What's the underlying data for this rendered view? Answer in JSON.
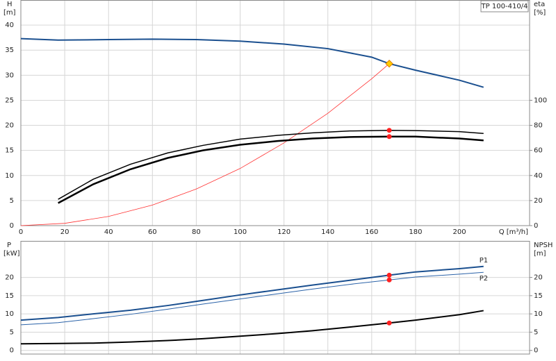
{
  "chart_data": [
    {
      "type": "line",
      "ylabel": "H",
      "yunit": "[m]",
      "y2label": "eta",
      "y2unit": "[%]",
      "xlabel": "Q [m³/h]",
      "legend_title": "TP 100-410/4",
      "xlim": [
        0,
        232
      ],
      "xticks": [
        0,
        20,
        40,
        60,
        80,
        100,
        120,
        140,
        160,
        180,
        200
      ],
      "ylim": [
        0,
        45
      ],
      "yticks": [
        0,
        5,
        10,
        15,
        20,
        25,
        30,
        35,
        40
      ],
      "y2lim": [
        0,
        180
      ],
      "y2ticks": [
        0,
        20,
        40,
        60,
        80,
        100
      ],
      "grid": true,
      "series": [
        {
          "color": "#1a4f8f",
          "width": 2,
          "x": [
            0,
            17,
            40,
            60,
            80,
            100,
            120,
            140,
            160,
            168,
            180,
            200,
            211
          ],
          "values": [
            37.3,
            37.0,
            37.1,
            37.2,
            37.1,
            36.8,
            36.2,
            35.3,
            33.6,
            32.3,
            31.0,
            29.0,
            27.6
          ]
        },
        {
          "color": "#ff3030",
          "width": 0.8,
          "x": [
            0,
            20,
            40,
            60,
            80,
            100,
            120,
            140,
            160,
            168
          ],
          "values": [
            0,
            0.46,
            1.83,
            4.1,
            7.3,
            11.4,
            16.5,
            22.4,
            29.3,
            32.3
          ]
        },
        {
          "color": "#000000",
          "width": 1.5,
          "axis": "y2",
          "x": [
            17,
            33,
            50,
            67,
            83,
            100,
            117,
            133,
            150,
            168,
            180,
            200,
            211
          ],
          "values": [
            21,
            37,
            49,
            58,
            64,
            69,
            72,
            74,
            75.5,
            76,
            75.8,
            75,
            73.5
          ]
        },
        {
          "color": "#000000",
          "width": 2.5,
          "axis": "y2",
          "x": [
            17,
            33,
            50,
            67,
            83,
            100,
            117,
            133,
            150,
            168,
            180,
            200,
            211
          ],
          "values": [
            18,
            33,
            45,
            54,
            60,
            64.5,
            67.5,
            69.5,
            70.7,
            71,
            71,
            69.5,
            68
          ]
        }
      ],
      "markers": [
        {
          "x": 168,
          "y": 76,
          "axis": "y2",
          "shape": "circle",
          "color": "#ff2020"
        },
        {
          "x": 168,
          "y": 71,
          "axis": "y2",
          "shape": "circle",
          "color": "#ff2020"
        },
        {
          "x": 168,
          "y": 32.3,
          "shape": "diamond",
          "color": "#ffcc00"
        }
      ]
    },
    {
      "type": "line",
      "ylabel": "P",
      "yunit": "[kW]",
      "y2label": "NPSH",
      "y2unit": "[m]",
      "xlim": [
        0,
        232
      ],
      "ylim": [
        -1,
        30
      ],
      "yticks": [
        0,
        5,
        10,
        15,
        20
      ],
      "y2lim": [
        -1,
        30
      ],
      "y2ticks": [
        0,
        5,
        10,
        15,
        20
      ],
      "grid": true,
      "series": [
        {
          "name": "P1",
          "color": "#1a4f8f",
          "width": 2,
          "x": [
            0,
            17,
            33,
            50,
            67,
            83,
            100,
            117,
            133,
            150,
            168,
            180,
            200,
            211
          ],
          "values": [
            8.3,
            9,
            10,
            11,
            12.3,
            13.7,
            15.2,
            16.6,
            17.9,
            19.2,
            20.6,
            21.5,
            22.4,
            23
          ]
        },
        {
          "name": "P2",
          "color": "#2a62a8",
          "width": 1,
          "x": [
            0,
            17,
            33,
            50,
            67,
            83,
            100,
            117,
            133,
            150,
            168,
            180,
            200,
            211
          ],
          "values": [
            7,
            7.6,
            8.7,
            9.9,
            11.3,
            12.7,
            14.1,
            15.5,
            16.8,
            18.1,
            19.3,
            20.1,
            20.9,
            21.4
          ]
        },
        {
          "color": "#000000",
          "width": 2,
          "axis": "y2",
          "x": [
            0,
            17,
            33,
            50,
            67,
            83,
            100,
            117,
            133,
            150,
            168,
            180,
            200,
            211
          ],
          "values": [
            1.8,
            1.9,
            2.0,
            2.3,
            2.7,
            3.2,
            3.9,
            4.6,
            5.4,
            6.4,
            7.5,
            8.3,
            9.8,
            10.9
          ]
        }
      ],
      "markers": [
        {
          "x": 168,
          "y": 20.6,
          "shape": "circle",
          "color": "#ff2020"
        },
        {
          "x": 168,
          "y": 19.3,
          "shape": "circle",
          "color": "#ff2020"
        },
        {
          "x": 168,
          "y": 7.5,
          "axis": "y2",
          "shape": "circle",
          "color": "#ff2020"
        }
      ]
    }
  ]
}
